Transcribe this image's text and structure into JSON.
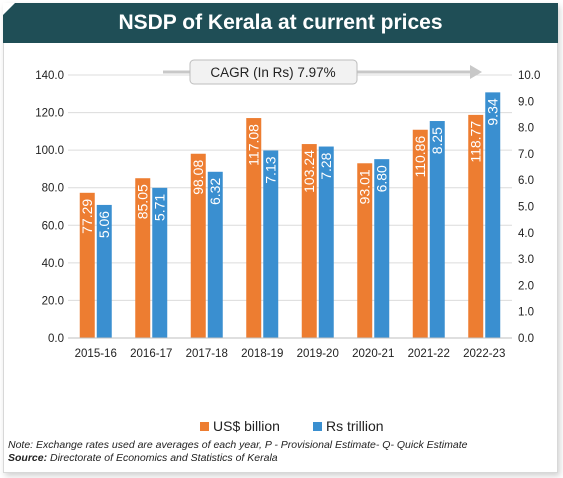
{
  "title": "NSDP of Kerala at current prices",
  "cagr_label": "CAGR (In Rs) 7.97%",
  "legend": {
    "usd": "US$ billion",
    "rs": "Rs trillion"
  },
  "note": "Note: Exchange rates used are averages of each year, P - Provisional Estimate- Q- Quick Estimate",
  "source_label": "Source:",
  "source_text": " Directorate of Economics and Statistics of Kerala",
  "colors": {
    "usd": "#ed7d31",
    "rs": "#3a8fd0",
    "title_bg": "#1f4e56"
  },
  "chart_data": {
    "type": "bar",
    "categories": [
      "2015-16",
      "2016-17",
      "2017-18",
      "2018-19",
      "2019-20",
      "2020-21",
      "2021-22",
      "2022-23"
    ],
    "series": [
      {
        "name": "US$ billion",
        "axis": "left",
        "values": [
          77.29,
          85.05,
          98.08,
          117.08,
          103.24,
          93.01,
          110.86,
          118.77
        ],
        "labels": [
          "77.29",
          "85.05",
          "98.08",
          "117.08",
          "103.24",
          "93.01",
          "110.86",
          "118.77"
        ]
      },
      {
        "name": "Rs trillion",
        "axis": "right",
        "values": [
          5.06,
          5.71,
          6.32,
          7.13,
          7.28,
          6.8,
          8.25,
          9.34
        ],
        "labels": [
          "5.06",
          "5.71",
          "6.32",
          "7.13",
          "7.28",
          "6.80",
          "8.25",
          "9.34"
        ]
      }
    ],
    "y_left": {
      "min": 0,
      "max": 140,
      "step": 20,
      "ticks": [
        "0.0",
        "20.0",
        "40.0",
        "60.0",
        "80.0",
        "100.0",
        "120.0",
        "140.0"
      ]
    },
    "y_right": {
      "min": 0,
      "max": 10,
      "step": 1,
      "ticks": [
        "0.0",
        "1.0",
        "2.0",
        "3.0",
        "4.0",
        "5.0",
        "6.0",
        "7.0",
        "8.0",
        "9.0",
        "10.0"
      ]
    },
    "grid": true,
    "legend_position": "bottom"
  }
}
